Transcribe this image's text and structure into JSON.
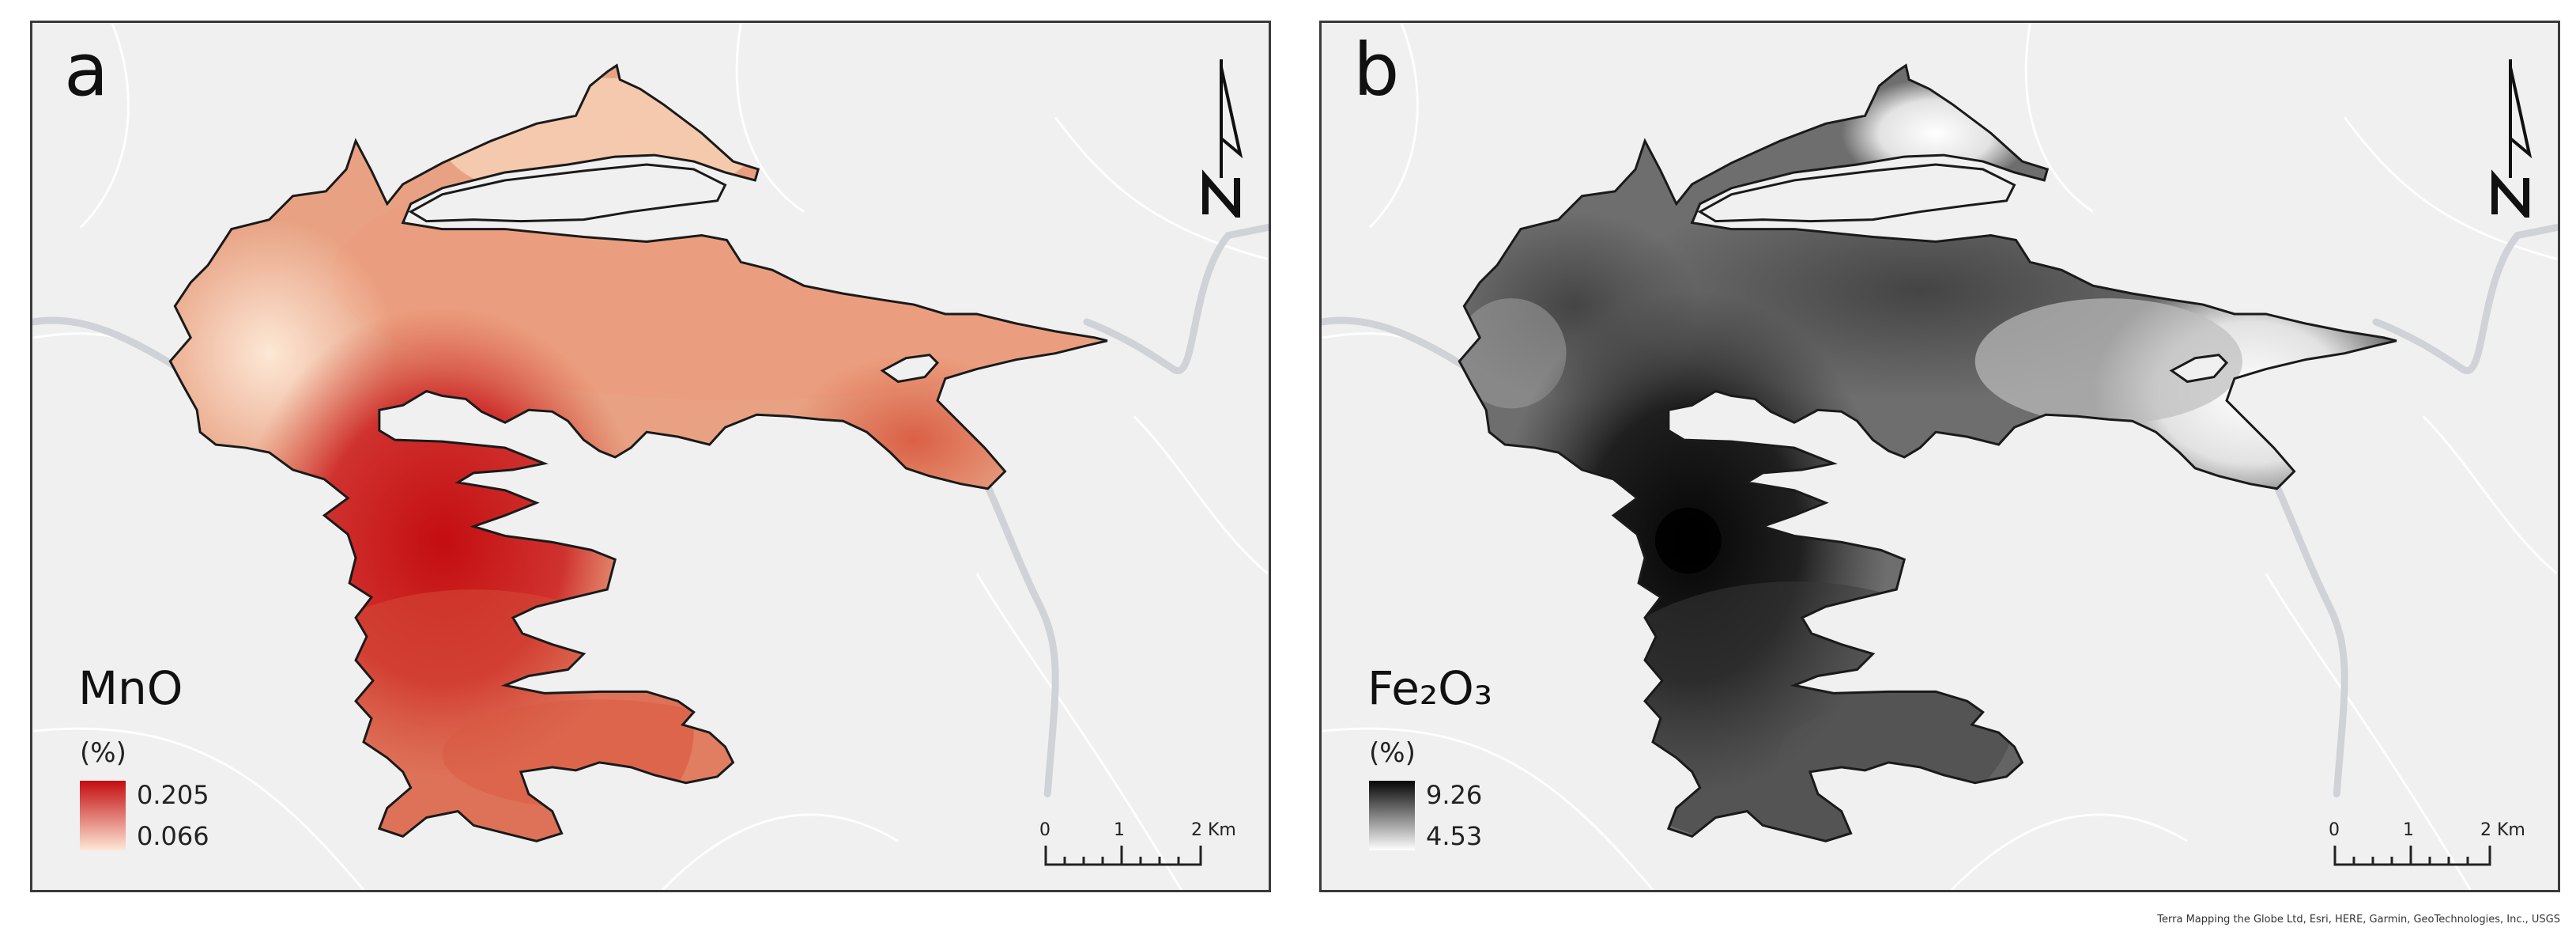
{
  "panels": [
    {
      "letter": "a",
      "legend": {
        "title": "MnO",
        "unit": "(%)",
        "max": "0.205",
        "min": "0.066",
        "ramp_high": "#c40d10",
        "ramp_low": "#fde8d6"
      },
      "scalebar": {
        "labels": [
          "0",
          "1",
          "2 Km"
        ]
      },
      "north_icon": "north-arrow-icon"
    },
    {
      "letter": "b",
      "legend": {
        "title": "Fe₂O₃",
        "unit": "(%)",
        "max": "9.26",
        "min": "4.53",
        "ramp_high": "#050505",
        "ramp_low": "#ffffff"
      },
      "scalebar": {
        "labels": [
          "0",
          "1",
          "2 Km"
        ]
      },
      "north_icon": "north-arrow-icon"
    }
  ],
  "attribution": "Terra Mapping the Globe Ltd, Esri, HERE, Garmin, GeoTechnologies, Inc., USGS",
  "colors": {
    "basemap": "#f0f0f0",
    "roads": "#ffffff",
    "water": "#cfd2d6",
    "outline": "#1a1a1a"
  }
}
